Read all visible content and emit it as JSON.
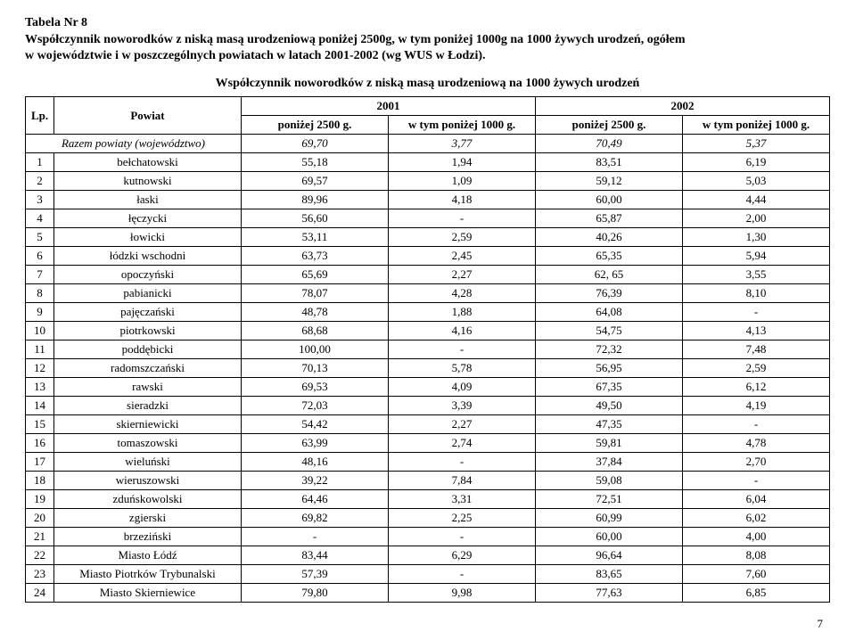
{
  "header": {
    "table_label": "Tabela Nr 8",
    "title_line1": "Współczynnik noworodków z niską masą urodzeniową poniżej 2500g, w tym poniżej 1000g na 1000 żywych urodzeń, ogółem",
    "title_line2": "w województwie i w poszczególnych powiatach w latach 2001-2002 (wg WUS w Łodzi).",
    "subtitle": "Współczynnik noworodków z niską masą urodzeniową na 1000 żywych urodzeń"
  },
  "columns": {
    "lp": "Lp.",
    "powiat": "Powiat",
    "y2001": "2001",
    "y2002": "2002",
    "sub1": "poniżej 2500 g.",
    "sub2": "w tym poniżej 1000 g.",
    "sub3": "poniżej 2500 g.",
    "sub4": "w tym poniżej 1000 g."
  },
  "totals": {
    "label": "Razem powiaty (województwo)",
    "v1": "69,70",
    "v2": "3,77",
    "v3": "70,49",
    "v4": "5,37"
  },
  "rows": [
    {
      "lp": "1",
      "pow": "bełchatowski",
      "v1": "55,18",
      "v2": "1,94",
      "v3": "83,51",
      "v4": "6,19"
    },
    {
      "lp": "2",
      "pow": "kutnowski",
      "v1": "69,57",
      "v2": "1,09",
      "v3": "59,12",
      "v4": "5,03"
    },
    {
      "lp": "3",
      "pow": "łaski",
      "v1": "89,96",
      "v2": "4,18",
      "v3": "60,00",
      "v4": "4,44"
    },
    {
      "lp": "4",
      "pow": "łęczycki",
      "v1": "56,60",
      "v2": "-",
      "v3": "65,87",
      "v4": "2,00"
    },
    {
      "lp": "5",
      "pow": "łowicki",
      "v1": "53,11",
      "v2": "2,59",
      "v3": "40,26",
      "v4": "1,30"
    },
    {
      "lp": "6",
      "pow": "łódzki wschodni",
      "v1": "63,73",
      "v2": "2,45",
      "v3": "65,35",
      "v4": "5,94"
    },
    {
      "lp": "7",
      "pow": "opoczyński",
      "v1": "65,69",
      "v2": "2,27",
      "v3": "62, 65",
      "v4": "3,55"
    },
    {
      "lp": "8",
      "pow": "pabianicki",
      "v1": "78,07",
      "v2": "4,28",
      "v3": "76,39",
      "v4": "8,10"
    },
    {
      "lp": "9",
      "pow": "pajęczański",
      "v1": "48,78",
      "v2": "1,88",
      "v3": "64,08",
      "v4": "-"
    },
    {
      "lp": "10",
      "pow": "piotrkowski",
      "v1": "68,68",
      "v2": "4,16",
      "v3": "54,75",
      "v4": "4,13"
    },
    {
      "lp": "11",
      "pow": "poddębicki",
      "v1": "100,00",
      "v2": "-",
      "v3": "72,32",
      "v4": "7,48"
    },
    {
      "lp": "12",
      "pow": "radomszczański",
      "v1": "70,13",
      "v2": "5,78",
      "v3": "56,95",
      "v4": "2,59"
    },
    {
      "lp": "13",
      "pow": "rawski",
      "v1": "69,53",
      "v2": "4,09",
      "v3": "67,35",
      "v4": "6,12"
    },
    {
      "lp": "14",
      "pow": "sieradzki",
      "v1": "72,03",
      "v2": "3,39",
      "v3": "49,50",
      "v4": "4,19"
    },
    {
      "lp": "15",
      "pow": "skierniewicki",
      "v1": "54,42",
      "v2": "2,27",
      "v3": "47,35",
      "v4": "-"
    },
    {
      "lp": "16",
      "pow": "tomaszowski",
      "v1": "63,99",
      "v2": "2,74",
      "v3": "59,81",
      "v4": "4,78"
    },
    {
      "lp": "17",
      "pow": "wieluński",
      "v1": "48,16",
      "v2": "-",
      "v3": "37,84",
      "v4": "2,70"
    },
    {
      "lp": "18",
      "pow": "wieruszowski",
      "v1": "39,22",
      "v2": "7,84",
      "v3": "59,08",
      "v4": "-"
    },
    {
      "lp": "19",
      "pow": "zduńskowolski",
      "v1": "64,46",
      "v2": "3,31",
      "v3": "72,51",
      "v4": "6,04"
    },
    {
      "lp": "20",
      "pow": "zgierski",
      "v1": "69,82",
      "v2": "2,25",
      "v3": "60,99",
      "v4": "6,02"
    },
    {
      "lp": "21",
      "pow": "brzeziński",
      "v1": "-",
      "v2": "-",
      "v3": "60,00",
      "v4": "4,00"
    },
    {
      "lp": "22",
      "pow": "Miasto Łódź",
      "v1": "83,44",
      "v2": "6,29",
      "v3": "96,64",
      "v4": "8,08"
    },
    {
      "lp": "23",
      "pow": "Miasto Piotrków Trybunalski",
      "v1": "57,39",
      "v2": "-",
      "v3": "83,65",
      "v4": "7,60"
    },
    {
      "lp": "24",
      "pow": "Miasto Skierniewice",
      "v1": "79,80",
      "v2": "9,98",
      "v3": "77,63",
      "v4": "6,85"
    }
  ],
  "page_number": "7"
}
